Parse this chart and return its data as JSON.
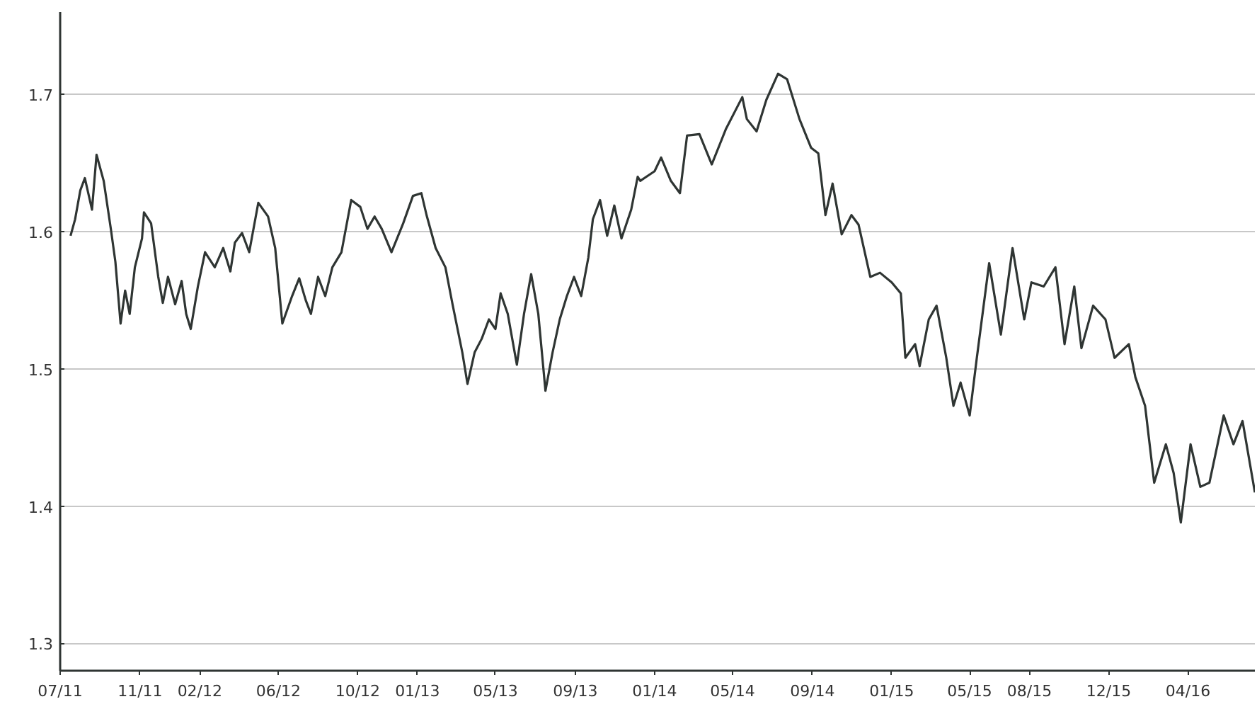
{
  "chart_data": {
    "type": "line",
    "x": [
      "2011-07-17",
      "2011-07-24",
      "2011-08-01",
      "2011-08-08",
      "2011-08-19",
      "2011-08-26",
      "2011-09-06",
      "2011-09-17",
      "2011-09-24",
      "2011-10-02",
      "2011-10-09",
      "2011-10-16",
      "2011-10-24",
      "2011-11-04",
      "2011-11-07",
      "2011-11-18",
      "2011-11-29",
      "2011-12-06",
      "2011-12-14",
      "2011-12-25",
      "2012-01-04",
      "2012-01-11",
      "2012-01-18",
      "2012-01-29",
      "2012-02-09",
      "2012-02-24",
      "2012-03-08",
      "2012-03-19",
      "2012-03-26",
      "2012-04-06",
      "2012-04-17",
      "2012-05-01",
      "2012-05-16",
      "2012-05-27",
      "2012-06-07",
      "2012-06-22",
      "2012-07-03",
      "2012-07-13",
      "2012-07-21",
      "2012-08-01",
      "2012-08-12",
      "2012-08-23",
      "2012-09-06",
      "2012-09-21",
      "2012-10-05",
      "2012-10-16",
      "2012-10-27",
      "2012-11-07",
      "2012-11-22",
      "2012-12-10",
      "2012-12-25",
      "2013-01-07",
      "2013-01-15",
      "2013-01-29",
      "2013-02-13",
      "2013-02-24",
      "2013-03-11",
      "2013-03-19",
      "2013-03-30",
      "2013-04-10",
      "2013-04-21",
      "2013-05-01",
      "2013-05-09",
      "2013-05-20",
      "2013-06-03",
      "2013-06-14",
      "2013-06-25",
      "2013-07-06",
      "2013-07-17",
      "2013-07-28",
      "2013-08-08",
      "2013-08-19",
      "2013-08-30",
      "2013-09-10",
      "2013-09-21",
      "2013-09-28",
      "2013-10-09",
      "2013-10-20",
      "2013-10-31",
      "2013-11-11",
      "2013-11-26",
      "2013-12-06",
      "2013-12-10",
      "2014-01-01",
      "2014-01-11",
      "2014-01-26",
      "2014-02-09",
      "2014-02-20",
      "2014-03-11",
      "2014-03-30",
      "2014-04-21",
      "2014-05-16",
      "2014-05-23",
      "2014-06-07",
      "2014-06-22",
      "2014-07-10",
      "2014-07-24",
      "2014-08-12",
      "2014-08-30",
      "2014-09-10",
      "2014-09-21",
      "2014-10-02",
      "2014-10-16",
      "2014-10-31",
      "2014-11-11",
      "2014-11-29",
      "2014-12-14",
      "2015-01-01",
      "2015-01-15",
      "2015-01-22",
      "2015-02-06",
      "2015-02-13",
      "2015-02-27",
      "2015-03-11",
      "2015-03-26",
      "2015-04-06",
      "2015-04-17",
      "2015-05-01",
      "2015-05-12",
      "2015-05-31",
      "2015-06-18",
      "2015-07-06",
      "2015-07-24",
      "2015-08-04",
      "2015-08-23",
      "2015-09-10",
      "2015-09-24",
      "2015-10-09",
      "2015-10-20",
      "2015-11-07",
      "2015-11-26",
      "2015-12-10",
      "2016-01-01",
      "2016-01-11",
      "2016-01-26",
      "2016-02-09",
      "2016-02-27",
      "2016-03-10",
      "2016-03-21",
      "2016-04-05",
      "2016-04-20",
      "2016-05-04",
      "2016-05-26",
      "2016-06-10",
      "2016-06-24",
      "2016-07-13"
    ],
    "series": [
      {
        "color": "#2f3533",
        "values": [
          1.597,
          1.609,
          1.63,
          1.639,
          1.616,
          1.656,
          1.637,
          1.602,
          1.578,
          1.533,
          1.557,
          1.54,
          1.574,
          1.595,
          1.614,
          1.606,
          1.567,
          1.548,
          1.567,
          1.547,
          1.564,
          1.54,
          1.529,
          1.56,
          1.585,
          1.574,
          1.588,
          1.571,
          1.592,
          1.599,
          1.585,
          1.621,
          1.611,
          1.588,
          1.533,
          1.553,
          1.566,
          1.55,
          1.54,
          1.567,
          1.553,
          1.574,
          1.585,
          1.623,
          1.618,
          1.602,
          1.611,
          1.602,
          1.585,
          1.606,
          1.626,
          1.628,
          1.612,
          1.588,
          1.574,
          1.547,
          1.512,
          1.489,
          1.512,
          1.522,
          1.536,
          1.529,
          1.555,
          1.54,
          1.503,
          1.54,
          1.569,
          1.54,
          1.484,
          1.512,
          1.536,
          1.553,
          1.567,
          1.553,
          1.581,
          1.609,
          1.623,
          1.597,
          1.619,
          1.595,
          1.616,
          1.64,
          1.637,
          1.644,
          1.654,
          1.637,
          1.628,
          1.67,
          1.671,
          1.649,
          1.675,
          1.698,
          1.682,
          1.673,
          1.696,
          1.715,
          1.711,
          1.682,
          1.661,
          1.657,
          1.612,
          1.635,
          1.598,
          1.612,
          1.605,
          1.567,
          1.57,
          1.563,
          1.555,
          1.508,
          1.518,
          1.502,
          1.536,
          1.546,
          1.508,
          1.473,
          1.49,
          1.466,
          1.508,
          1.577,
          1.525,
          1.588,
          1.536,
          1.563,
          1.56,
          1.574,
          1.518,
          1.56,
          1.515,
          1.546,
          1.536,
          1.508,
          1.518,
          1.494,
          1.473,
          1.417,
          1.445,
          1.424,
          1.388,
          1.445,
          1.414,
          1.417,
          1.466,
          1.445,
          1.462,
          1.41
        ]
      }
    ],
    "xlim": [
      "2011-07-01",
      "2016-07-13"
    ],
    "xticks": [
      {
        "value": "2011-07",
        "label": "07/11"
      },
      {
        "value": "2011-11",
        "label": "11/11"
      },
      {
        "value": "2012-02",
        "label": "02/12"
      },
      {
        "value": "2012-06",
        "label": "06/12"
      },
      {
        "value": "2012-10",
        "label": "10/12"
      },
      {
        "value": "2013-01",
        "label": "01/13"
      },
      {
        "value": "2013-05",
        "label": "05/13"
      },
      {
        "value": "2013-09",
        "label": "09/13"
      },
      {
        "value": "2014-01",
        "label": "01/14"
      },
      {
        "value": "2014-05",
        "label": "05/14"
      },
      {
        "value": "2014-09",
        "label": "09/14"
      },
      {
        "value": "2015-01",
        "label": "01/15"
      },
      {
        "value": "2015-05",
        "label": "05/15"
      },
      {
        "value": "2015-08",
        "label": "08/15"
      },
      {
        "value": "2015-12",
        "label": "12/15"
      },
      {
        "value": "2016-04",
        "label": "04/16"
      }
    ],
    "ylim": [
      1.28,
      1.76
    ],
    "yticks": [
      1.3,
      1.4,
      1.5,
      1.6,
      1.7
    ],
    "grid": "y",
    "line_style": "solid"
  }
}
